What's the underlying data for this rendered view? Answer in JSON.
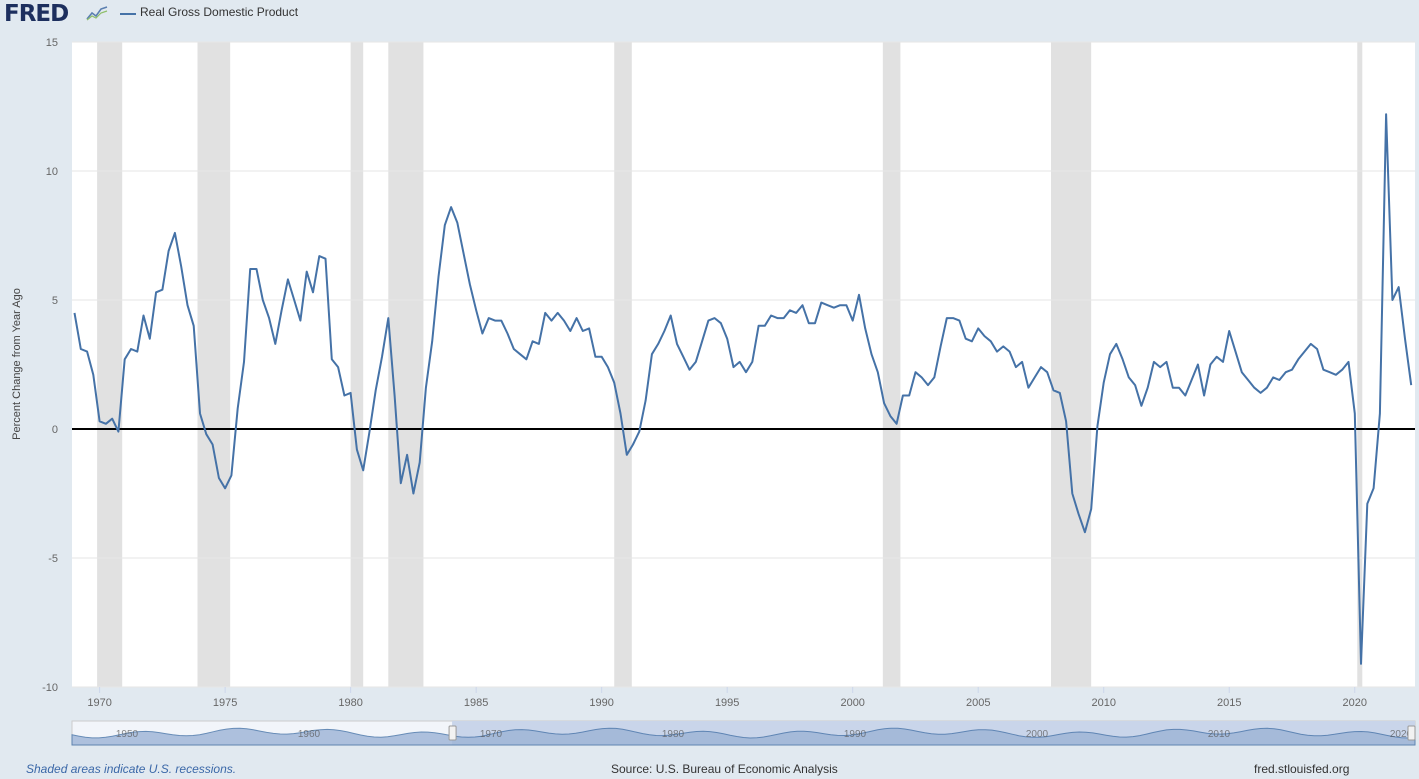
{
  "header": {
    "logo": "FRED",
    "series_label": "Real Gross Domestic Product"
  },
  "footer": {
    "recession_note": "Shaded areas indicate U.S. recessions.",
    "source": "Source: U.S. Bureau of Economic Analysis",
    "site": "fred.stlouisfed.org"
  },
  "colors": {
    "line": "#4572a7",
    "recession": "#e1e1e1",
    "background": "#e1e9f0",
    "plot": "#ffffff",
    "navigator_fill": "#9db4d6",
    "navigator_selected": "#c9d5ea"
  },
  "chart_data": {
    "type": "line",
    "title": "",
    "xlabel": "",
    "ylabel": "Percent Change from Year Ago",
    "ylim": [
      -10,
      15
    ],
    "yticks": [
      15,
      10,
      5,
      0,
      -5,
      -10
    ],
    "xlim": [
      1968.9,
      2022.4
    ],
    "xticks": [
      1970,
      1975,
      1980,
      1985,
      1990,
      1995,
      2000,
      2005,
      2010,
      2015,
      2020
    ],
    "grid": true,
    "legend": "top-left",
    "recessions": [
      [
        1969.9,
        1970.9
      ],
      [
        1973.9,
        1975.2
      ],
      [
        1980.0,
        1980.5
      ],
      [
        1981.5,
        1982.9
      ],
      [
        1990.5,
        1991.2
      ],
      [
        2001.2,
        2001.9
      ],
      [
        2007.9,
        2009.5
      ],
      [
        2020.1,
        2020.3
      ]
    ],
    "navigator_ticks": [
      "1950",
      "1960",
      "1970",
      "1980",
      "1990",
      "2000",
      "2010",
      "2020"
    ],
    "series": [
      {
        "name": "Real Gross Domestic Product",
        "x": [
          1969.0,
          1969.25,
          1969.5,
          1969.75,
          1970.0,
          1970.25,
          1970.5,
          1970.75,
          1971.0,
          1971.25,
          1971.5,
          1971.75,
          1972.0,
          1972.25,
          1972.5,
          1972.75,
          1973.0,
          1973.25,
          1973.5,
          1973.75,
          1974.0,
          1974.25,
          1974.5,
          1974.75,
          1975.0,
          1975.25,
          1975.5,
          1975.75,
          1976.0,
          1976.25,
          1976.5,
          1976.75,
          1977.0,
          1977.25,
          1977.5,
          1977.75,
          1978.0,
          1978.25,
          1978.5,
          1978.75,
          1979.0,
          1979.25,
          1979.5,
          1979.75,
          1980.0,
          1980.25,
          1980.5,
          1980.75,
          1981.0,
          1981.25,
          1981.5,
          1981.75,
          1982.0,
          1982.25,
          1982.5,
          1982.75,
          1983.0,
          1983.25,
          1983.5,
          1983.75,
          1984.0,
          1984.25,
          1984.5,
          1984.75,
          1985.0,
          1985.25,
          1985.5,
          1985.75,
          1986.0,
          1986.25,
          1986.5,
          1986.75,
          1987.0,
          1987.25,
          1987.5,
          1987.75,
          1988.0,
          1988.25,
          1988.5,
          1988.75,
          1989.0,
          1989.25,
          1989.5,
          1989.75,
          1990.0,
          1990.25,
          1990.5,
          1990.75,
          1991.0,
          1991.25,
          1991.5,
          1991.75,
          1992.0,
          1992.25,
          1992.5,
          1992.75,
          1993.0,
          1993.25,
          1993.5,
          1993.75,
          1994.0,
          1994.25,
          1994.5,
          1994.75,
          1995.0,
          1995.25,
          1995.5,
          1995.75,
          1996.0,
          1996.25,
          1996.5,
          1996.75,
          1997.0,
          1997.25,
          1997.5,
          1997.75,
          1998.0,
          1998.25,
          1998.5,
          1998.75,
          1999.0,
          1999.25,
          1999.5,
          1999.75,
          2000.0,
          2000.25,
          2000.5,
          2000.75,
          2001.0,
          2001.25,
          2001.5,
          2001.75,
          2002.0,
          2002.25,
          2002.5,
          2002.75,
          2003.0,
          2003.25,
          2003.5,
          2003.75,
          2004.0,
          2004.25,
          2004.5,
          2004.75,
          2005.0,
          2005.25,
          2005.5,
          2005.75,
          2006.0,
          2006.25,
          2006.5,
          2006.75,
          2007.0,
          2007.25,
          2007.5,
          2007.75,
          2008.0,
          2008.25,
          2008.5,
          2008.75,
          2009.0,
          2009.25,
          2009.5,
          2009.75,
          2010.0,
          2010.25,
          2010.5,
          2010.75,
          2011.0,
          2011.25,
          2011.5,
          2011.75,
          2012.0,
          2012.25,
          2012.5,
          2012.75,
          2013.0,
          2013.25,
          2013.5,
          2013.75,
          2014.0,
          2014.25,
          2014.5,
          2014.75,
          2015.0,
          2015.25,
          2015.5,
          2015.75,
          2016.0,
          2016.25,
          2016.5,
          2016.75,
          2017.0,
          2017.25,
          2017.5,
          2017.75,
          2018.0,
          2018.25,
          2018.5,
          2018.75,
          2019.0,
          2019.25,
          2019.5,
          2019.75,
          2020.0,
          2020.25,
          2020.5,
          2020.75,
          2021.0,
          2021.25,
          2021.5,
          2021.75,
          2022.0,
          2022.25
        ],
        "values": [
          4.5,
          3.1,
          3.0,
          2.1,
          0.3,
          0.2,
          0.4,
          -0.1,
          2.7,
          3.1,
          3.0,
          4.4,
          3.5,
          5.3,
          5.4,
          6.9,
          7.6,
          6.3,
          4.8,
          4.0,
          0.6,
          -0.2,
          -0.6,
          -1.9,
          -2.3,
          -1.8,
          0.8,
          2.6,
          6.2,
          6.2,
          5.0,
          4.3,
          3.3,
          4.6,
          5.8,
          5.0,
          4.2,
          6.1,
          5.3,
          6.7,
          6.6,
          2.7,
          2.4,
          1.3,
          1.4,
          -0.8,
          -1.6,
          -0.1,
          1.5,
          2.8,
          4.3,
          1.3,
          -2.1,
          -1.0,
          -2.5,
          -1.3,
          1.6,
          3.4,
          5.9,
          7.9,
          8.6,
          8.0,
          6.8,
          5.6,
          4.6,
          3.7,
          4.3,
          4.2,
          4.2,
          3.7,
          3.1,
          2.9,
          2.7,
          3.4,
          3.3,
          4.5,
          4.2,
          4.5,
          4.2,
          3.8,
          4.3,
          3.8,
          3.9,
          2.8,
          2.8,
          2.4,
          1.8,
          0.6,
          -1.0,
          -0.6,
          -0.1,
          1.1,
          2.9,
          3.3,
          3.8,
          4.4,
          3.3,
          2.8,
          2.3,
          2.6,
          3.4,
          4.2,
          4.3,
          4.1,
          3.5,
          2.4,
          2.6,
          2.2,
          2.6,
          4.0,
          4.0,
          4.4,
          4.3,
          4.3,
          4.6,
          4.5,
          4.8,
          4.1,
          4.1,
          4.9,
          4.8,
          4.7,
          4.8,
          4.8,
          4.2,
          5.2,
          3.9,
          2.9,
          2.2,
          1.0,
          0.5,
          0.2,
          1.3,
          1.3,
          2.2,
          2.0,
          1.7,
          2.0,
          3.2,
          4.3,
          4.3,
          4.2,
          3.5,
          3.4,
          3.9,
          3.6,
          3.4,
          3.0,
          3.2,
          3.0,
          2.4,
          2.6,
          1.6,
          2.0,
          2.4,
          2.2,
          1.5,
          1.4,
          0.3,
          -2.5,
          -3.3,
          -4.0,
          -3.1,
          0.1,
          1.8,
          2.9,
          3.3,
          2.7,
          2.0,
          1.7,
          0.9,
          1.6,
          2.6,
          2.4,
          2.6,
          1.6,
          1.6,
          1.3,
          1.9,
          2.5,
          1.3,
          2.5,
          2.8,
          2.6,
          3.8,
          3.0,
          2.2,
          1.9,
          1.6,
          1.4,
          1.6,
          2.0,
          1.9,
          2.2,
          2.3,
          2.7,
          3.0,
          3.3,
          3.1,
          2.3,
          2.2,
          2.1,
          2.3,
          2.6,
          0.6,
          -9.1,
          -2.9,
          -2.3,
          0.6,
          12.2,
          5.0,
          5.5,
          3.5,
          1.7
        ]
      }
    ]
  }
}
